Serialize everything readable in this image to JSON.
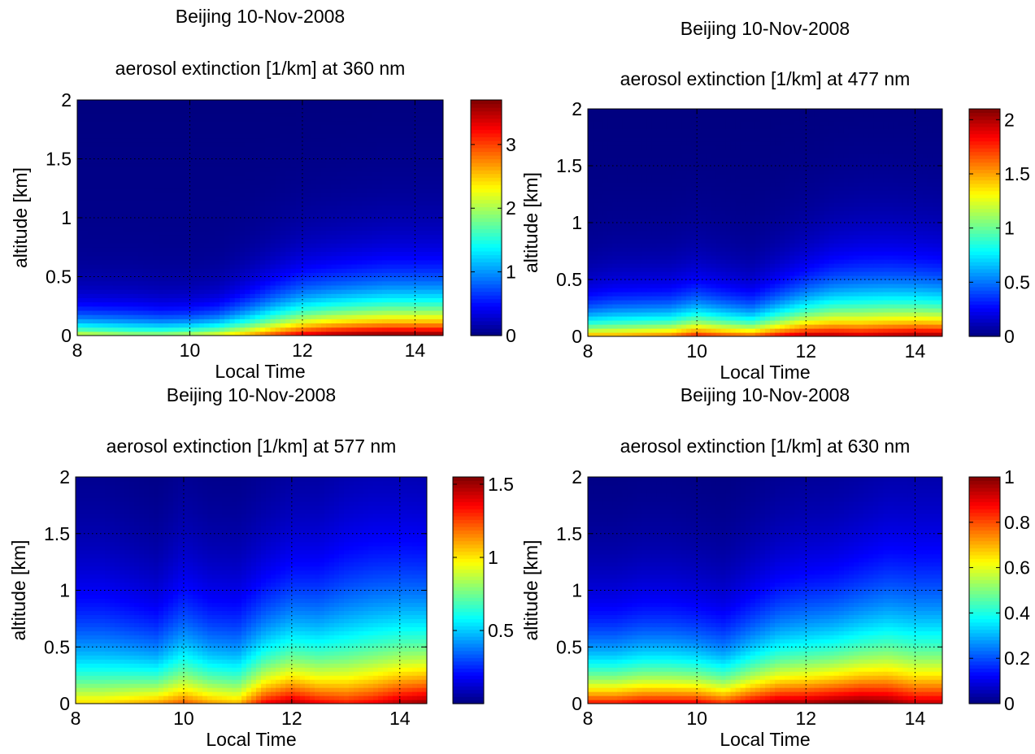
{
  "chart_data": [
    {
      "type": "heatmap",
      "title": "Beijing 10-Nov-2008",
      "subtitle": "aerosol extinction [1/km] at 360 nm",
      "xlabel": "Local Time",
      "ylabel": "altitude [km]",
      "xlim": [
        8,
        14.5
      ],
      "ylim": [
        0,
        2
      ],
      "xticks": [
        8,
        10,
        12,
        14
      ],
      "yticks": [
        0,
        0.5,
        1,
        1.5,
        2
      ],
      "grid": true,
      "colormap": "jet",
      "colorbar": {
        "min": 0,
        "max": 3.7,
        "ticks": [
          0,
          1,
          2,
          3
        ]
      },
      "surface": {
        "base_value": [
          2.2,
          2.1,
          2.0,
          2.0,
          2.1,
          2.3,
          2.6,
          3.0,
          3.35,
          3.55,
          3.65,
          3.7,
          3.7,
          3.7
        ],
        "decay_height": [
          0.16,
          0.16,
          0.16,
          0.15,
          0.15,
          0.16,
          0.2,
          0.24,
          0.27,
          0.28,
          0.29,
          0.3,
          0.3,
          0.3
        ]
      }
    },
    {
      "type": "heatmap",
      "title": "Beijing 10-Nov-2008",
      "subtitle": "aerosol extinction [1/km] at 477 nm",
      "xlabel": "Local Time",
      "ylabel": "altitude [km]",
      "xlim": [
        8,
        14.5
      ],
      "ylim": [
        0,
        2
      ],
      "xticks": [
        8,
        10,
        12,
        14
      ],
      "yticks": [
        0,
        0.5,
        1,
        1.5,
        2
      ],
      "grid": true,
      "colormap": "jet",
      "colorbar": {
        "min": 0,
        "max": 2.1,
        "ticks": [
          0,
          0.5,
          1,
          1.5,
          2
        ]
      },
      "surface": {
        "base_value": [
          1.5,
          1.5,
          1.55,
          1.6,
          1.8,
          1.7,
          1.65,
          1.85,
          2.0,
          2.0,
          1.95,
          2.0,
          2.05,
          2.05
        ],
        "decay_height": [
          0.2,
          0.22,
          0.22,
          0.22,
          0.24,
          0.22,
          0.2,
          0.24,
          0.28,
          0.32,
          0.34,
          0.34,
          0.33,
          0.32
        ]
      }
    },
    {
      "type": "heatmap",
      "title": "Beijing 10-Nov-2008",
      "subtitle": "aerosol extinction [1/km] at 577 nm",
      "xlabel": "Local Time",
      "ylabel": "altitude [km]",
      "xlim": [
        8,
        14.5
      ],
      "ylim": [
        0,
        2
      ],
      "xticks": [
        8,
        10,
        12,
        14
      ],
      "yticks": [
        0,
        0.5,
        1,
        1.5,
        2
      ],
      "grid": true,
      "colormap": "jet",
      "colorbar": {
        "min": 0,
        "max": 1.55,
        "ticks": [
          0.5,
          1,
          1.5
        ]
      },
      "surface": {
        "base_value": [
          1.0,
          1.0,
          1.05,
          1.1,
          1.2,
          1.1,
          1.05,
          1.35,
          1.45,
          1.35,
          1.3,
          1.35,
          1.45,
          1.5
        ],
        "decay_height": [
          0.55,
          0.55,
          0.5,
          0.45,
          0.55,
          0.5,
          0.5,
          0.55,
          0.6,
          0.62,
          0.7,
          0.72,
          0.7,
          0.68
        ]
      }
    },
    {
      "type": "heatmap",
      "title": "Beijing 10-Nov-2008",
      "subtitle": "aerosol extinction [1/km] at 630 nm",
      "xlabel": "Local Time",
      "ylabel": "altitude [km]",
      "xlim": [
        8,
        14.5
      ],
      "ylim": [
        0,
        2
      ],
      "xticks": [
        8,
        10,
        12,
        14
      ],
      "yticks": [
        0,
        0.5,
        1,
        1.5,
        2
      ],
      "grid": true,
      "colormap": "jet",
      "colorbar": {
        "min": 0,
        "max": 1.0,
        "ticks": [
          0,
          0.2,
          0.4,
          0.6,
          0.8,
          1
        ]
      },
      "surface": {
        "base_value": [
          0.85,
          0.85,
          0.88,
          0.88,
          0.88,
          0.82,
          0.9,
          0.95,
          0.95,
          0.98,
          1.0,
          0.98,
          0.92,
          0.92
        ],
        "decay_height": [
          0.42,
          0.42,
          0.44,
          0.44,
          0.42,
          0.4,
          0.46,
          0.52,
          0.55,
          0.56,
          0.6,
          0.65,
          0.66,
          0.66
        ]
      }
    }
  ]
}
